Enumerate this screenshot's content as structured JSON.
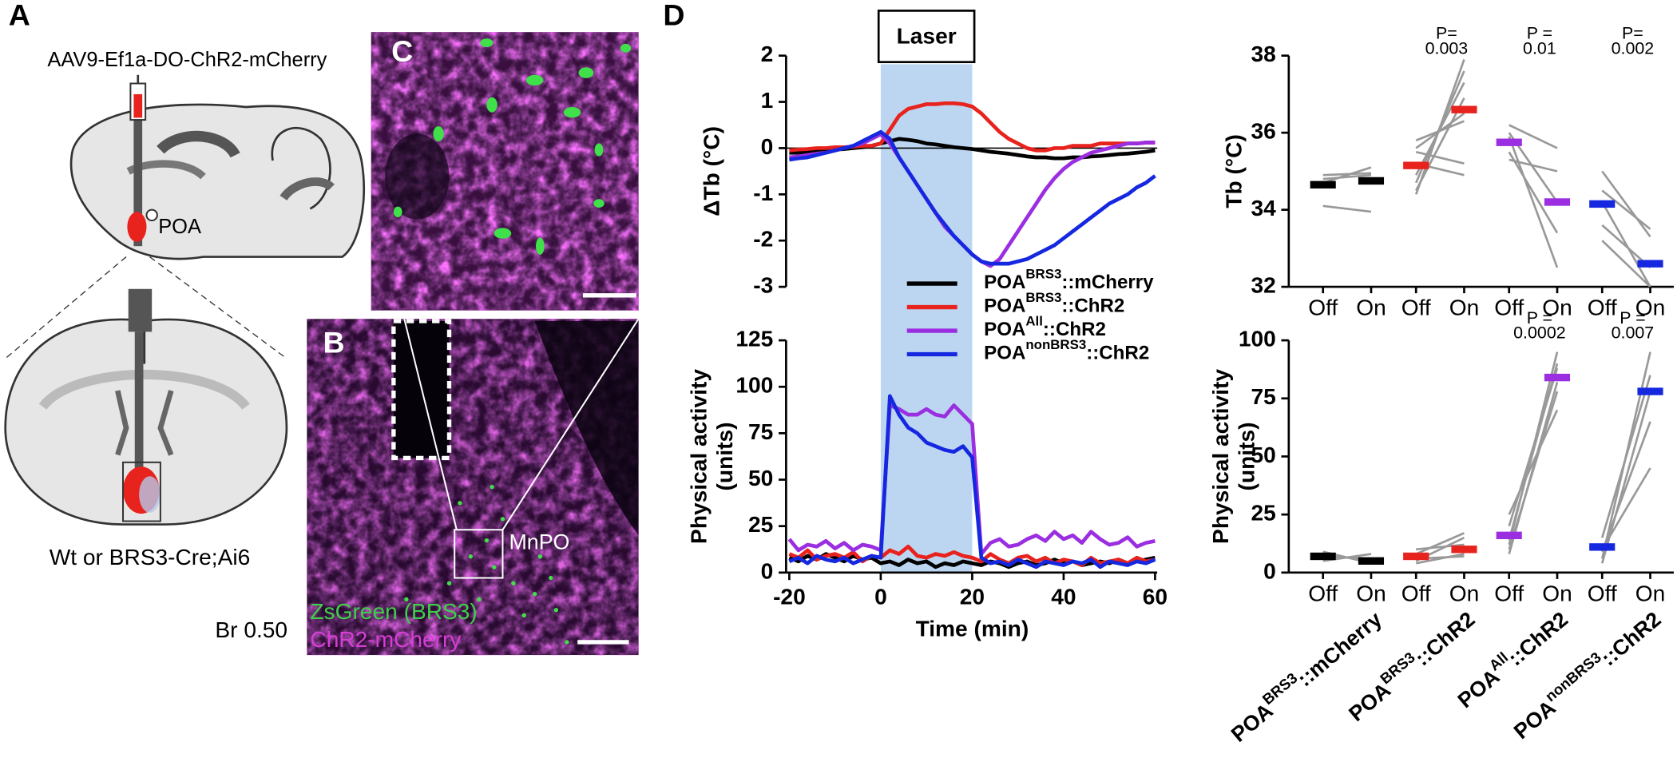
{
  "panels": {
    "A": {
      "label": "A",
      "virus": "AAV9-Ef1a-DO-ChR2-mCherry",
      "region": "POA",
      "genotype": "Wt or BRS3-Cre;Ai6",
      "bregma": "Br 0.50"
    },
    "B": {
      "label": "B",
      "region": "MnPO",
      "stain_green": "ZsGreen (BRS3)",
      "stain_magenta": "ChR2-mCherry"
    },
    "C": {
      "label": "C"
    },
    "D": {
      "label": "D"
    }
  },
  "chart_data": [
    {
      "type": "line",
      "y_label": [
        "ΔTb (°C)"
      ],
      "laser": {
        "label": "Laser",
        "start": 0,
        "end": 20
      },
      "zero_line": true,
      "xlim": [
        -20,
        60
      ],
      "ylim": [
        -3,
        2
      ],
      "yticks": [
        -3,
        -2,
        -1,
        0,
        1,
        2
      ],
      "legend": true,
      "x": [
        -20,
        -18,
        -16,
        -14,
        -12,
        -10,
        -8,
        -6,
        -4,
        -2,
        0,
        2,
        4,
        6,
        8,
        10,
        12,
        14,
        16,
        18,
        20,
        22,
        24,
        26,
        28,
        30,
        32,
        34,
        36,
        38,
        40,
        42,
        44,
        46,
        48,
        50,
        52,
        54,
        56,
        58,
        60
      ],
      "series": [
        {
          "name": {
            "base": "POA",
            "sup": "BRS3",
            "rest": "::mCherry"
          },
          "color": "#000000",
          "values": [
            -0.1,
            -0.1,
            -0.08,
            -0.06,
            -0.05,
            -0.03,
            -0.02,
            0,
            0.02,
            0.05,
            0.1,
            0.15,
            0.2,
            0.18,
            0.15,
            0.1,
            0.08,
            0.05,
            0.02,
            0,
            -0.02,
            -0.05,
            -0.08,
            -0.1,
            -0.12,
            -0.15,
            -0.18,
            -0.2,
            -0.2,
            -0.22,
            -0.22,
            -0.2,
            -0.2,
            -0.18,
            -0.17,
            -0.15,
            -0.13,
            -0.12,
            -0.1,
            -0.08,
            -0.05
          ]
        },
        {
          "name": {
            "base": "POA",
            "sup": "BRS3",
            "rest": "::ChR2"
          },
          "color": "#e8221c",
          "values": [
            -0.05,
            -0.03,
            -0.02,
            0,
            0,
            0.02,
            0.02,
            0.03,
            0.05,
            0.05,
            0.1,
            0.4,
            0.7,
            0.85,
            0.9,
            0.95,
            0.95,
            0.97,
            0.97,
            0.95,
            0.9,
            0.75,
            0.55,
            0.35,
            0.2,
            0.1,
            0,
            -0.05,
            -0.05,
            0,
            0,
            0.05,
            0.05,
            0.05,
            0.1,
            0.1,
            0.1,
            0.1,
            0.1,
            0.12,
            0.12
          ]
        },
        {
          "name": {
            "base": "POA",
            "sup": "All",
            "rest": "::ChR2"
          },
          "color": "#9a2ee0",
          "values": [
            -0.2,
            -0.18,
            -0.15,
            -0.12,
            -0.1,
            -0.05,
            0,
            0.05,
            0.1,
            0.2,
            0.3,
            0.1,
            -0.2,
            -0.5,
            -0.8,
            -1.1,
            -1.4,
            -1.7,
            -1.9,
            -2.1,
            -2.3,
            -2.45,
            -2.55,
            -2.4,
            -2.1,
            -1.8,
            -1.5,
            -1.2,
            -0.9,
            -0.65,
            -0.45,
            -0.3,
            -0.2,
            -0.1,
            -0.05,
            0,
            0.05,
            0.1,
            0.1,
            0.12,
            0.12
          ]
        },
        {
          "name": {
            "base": "POA",
            "sup": "nonBRS3",
            "rest": "::ChR2"
          },
          "color": "#1528e0",
          "values": [
            -0.25,
            -0.22,
            -0.2,
            -0.15,
            -0.1,
            -0.05,
            0,
            0.05,
            0.15,
            0.25,
            0.35,
            0.2,
            -0.2,
            -0.5,
            -0.8,
            -1.1,
            -1.4,
            -1.65,
            -1.9,
            -2.1,
            -2.3,
            -2.45,
            -2.5,
            -2.5,
            -2.5,
            -2.45,
            -2.4,
            -2.3,
            -2.2,
            -2.1,
            -1.95,
            -1.8,
            -1.65,
            -1.5,
            -1.35,
            -1.2,
            -1.1,
            -1,
            -0.85,
            -0.75,
            -0.6
          ]
        }
      ]
    },
    {
      "type": "line",
      "y_label": [
        "Physical activity",
        "(units)"
      ],
      "x_label": "Time (min)",
      "xlim": [
        -20,
        60
      ],
      "xticks": [
        -20,
        0,
        20,
        40,
        60
      ],
      "ylim": [
        0,
        125
      ],
      "yticks": [
        0,
        25,
        50,
        75,
        100,
        125
      ],
      "x": [
        -20,
        -18,
        -16,
        -14,
        -12,
        -10,
        -8,
        -6,
        -4,
        -2,
        0,
        2,
        4,
        6,
        8,
        10,
        12,
        14,
        16,
        18,
        20,
        22,
        24,
        26,
        28,
        30,
        32,
        34,
        36,
        38,
        40,
        42,
        44,
        46,
        48,
        50,
        52,
        54,
        56,
        58,
        60
      ],
      "series": [
        {
          "color": "#000000",
          "values": [
            8,
            6,
            9,
            7,
            10,
            8,
            6,
            9,
            7,
            8,
            5,
            6,
            4,
            7,
            5,
            6,
            3,
            5,
            4,
            6,
            5,
            4,
            6,
            5,
            3,
            5,
            6,
            4,
            5,
            7,
            5,
            6,
            4,
            5,
            6,
            5,
            7,
            5,
            6,
            7,
            8
          ]
        },
        {
          "color": "#e8221c",
          "values": [
            10,
            8,
            12,
            7,
            9,
            10,
            8,
            11,
            6,
            9,
            8,
            12,
            10,
            14,
            9,
            8,
            10,
            9,
            11,
            9,
            8,
            6,
            10,
            7,
            5,
            8,
            9,
            6,
            8,
            5,
            7,
            6,
            4,
            8,
            5,
            6,
            7,
            5,
            8,
            6,
            7
          ]
        },
        {
          "color": "#9a2ee0",
          "values": [
            18,
            12,
            15,
            14,
            17,
            13,
            16,
            12,
            15,
            14,
            12,
            90,
            88,
            85,
            85,
            88,
            85,
            84,
            90,
            85,
            80,
            10,
            16,
            18,
            14,
            15,
            18,
            20,
            17,
            22,
            18,
            20,
            16,
            22,
            18,
            15,
            16,
            19,
            14,
            16,
            17
          ]
        },
        {
          "color": "#1528e0",
          "values": [
            6,
            8,
            5,
            9,
            7,
            6,
            8,
            5,
            7,
            9,
            8,
            95,
            85,
            78,
            75,
            70,
            68,
            66,
            65,
            68,
            62,
            8,
            5,
            6,
            4,
            7,
            5,
            3,
            6,
            5,
            4,
            6,
            5,
            7,
            3,
            6,
            5,
            4,
            6,
            5,
            7
          ]
        }
      ]
    },
    {
      "type": "paired",
      "y_label": [
        "Tb (°C)"
      ],
      "ylim": [
        32,
        38
      ],
      "yticks": [
        32,
        34,
        36,
        38
      ],
      "conditions": [
        "Off",
        "On"
      ],
      "groups": [
        {
          "color": "#000000",
          "means": [
            34.65,
            34.75
          ],
          "pairs": [
            [
              34.1,
              33.95
            ],
            [
              34.8,
              34.9
            ],
            [
              34.7,
              35.1
            ],
            [
              34.9,
              34.95
            ]
          ]
        },
        {
          "color": "#e8221c",
          "means": [
            35.15,
            36.6
          ],
          "p": [
            "P=",
            "0.003"
          ],
          "pairs": [
            [
              34.4,
              37.9
            ],
            [
              34.5,
              36.9
            ],
            [
              34.7,
              37.6
            ],
            [
              35.6,
              36.5
            ],
            [
              35.8,
              36.3
            ],
            [
              35.5,
              35.2
            ],
            [
              34.9,
              37.3
            ],
            [
              35.2,
              34.9
            ]
          ]
        },
        {
          "color": "#9a2ee0",
          "means": [
            35.75,
            34.2
          ],
          "p": [
            "P =",
            "0.01"
          ],
          "pairs": [
            [
              36.2,
              35.6
            ],
            [
              36.0,
              34.2
            ],
            [
              35.5,
              33.4
            ],
            [
              35.9,
              32.5
            ],
            [
              35.3,
              35.0
            ]
          ]
        },
        {
          "color": "#1528e0",
          "means": [
            34.15,
            32.6
          ],
          "p": [
            "P=",
            "0.002"
          ],
          "pairs": [
            [
              35.0,
              33.3
            ],
            [
              34.5,
              33.5
            ],
            [
              34.2,
              32.0
            ],
            [
              33.6,
              32.5
            ],
            [
              33.2,
              32.0
            ]
          ]
        }
      ]
    },
    {
      "type": "paired",
      "y_label": [
        "Physical activity",
        "(units)"
      ],
      "ylim": [
        0,
        100
      ],
      "yticks": [
        0,
        25,
        50,
        75,
        100
      ],
      "conditions": [
        "Off",
        "On"
      ],
      "groups": [
        {
          "name": {
            "base": "POA",
            "sup": "BRS3",
            "rest": "::mCherry"
          },
          "color": "#000000",
          "means": [
            7,
            5
          ],
          "pairs": [
            [
              9,
              4
            ],
            [
              7,
              6
            ],
            [
              5,
              8
            ],
            [
              8,
              5
            ]
          ]
        },
        {
          "name": {
            "base": "POA",
            "sup": "BRS3",
            "rest": "::ChR2"
          },
          "color": "#e8221c",
          "means": [
            7,
            10
          ],
          "pairs": [
            [
              5,
              15
            ],
            [
              8,
              17
            ],
            [
              10,
              12
            ],
            [
              4,
              8
            ],
            [
              6,
              7
            ]
          ]
        },
        {
          "name": {
            "base": "POA",
            "sup": "All",
            "rest": "::ChR2"
          },
          "color": "#9a2ee0",
          "means": [
            16,
            84
          ],
          "p": [
            "P =",
            "0.0002"
          ],
          "pairs": [
            [
              8,
              82
            ],
            [
              12,
              95
            ],
            [
              20,
              88
            ],
            [
              25,
              70
            ],
            [
              14,
              90
            ],
            [
              10,
              78
            ]
          ]
        },
        {
          "name": {
            "base": "POA",
            "sup": "nonBRS3",
            "rest": "::ChR2"
          },
          "color": "#1528e0",
          "means": [
            11,
            78
          ],
          "p": [
            "P =",
            "0.007"
          ],
          "pairs": [
            [
              6,
              95
            ],
            [
              9,
              65
            ],
            [
              15,
              85
            ],
            [
              10,
              45
            ],
            [
              4,
              78
            ]
          ]
        }
      ]
    }
  ]
}
